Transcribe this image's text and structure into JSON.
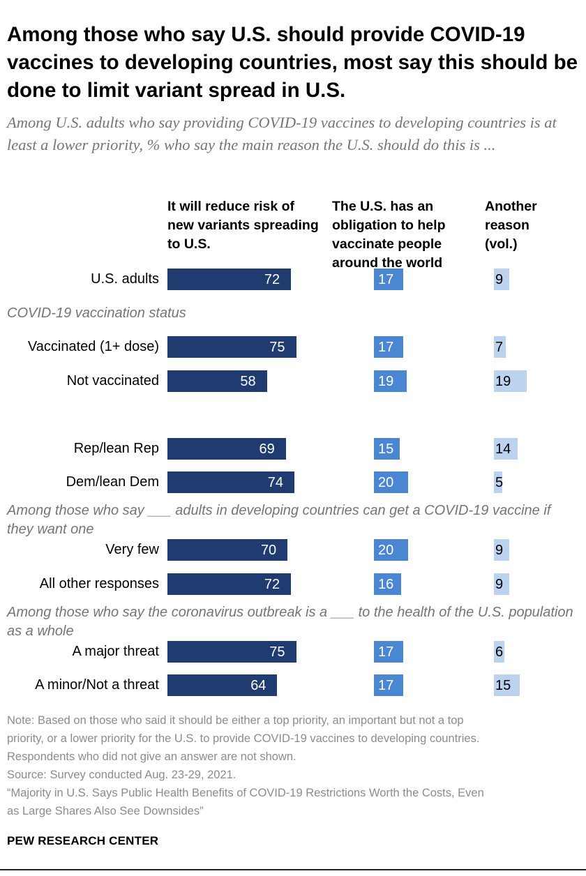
{
  "title": "Among those who say U.S. should provide COVID-19 vaccines to developing countries, most say this should be done to limit variant spread in U.S.",
  "subtitle": "Among U.S. adults who say providing COVID-19 vaccines to developing countries is at least a lower priority, % who say the main reason the U.S. should do this is ...",
  "colors": {
    "series0": "#1f3b6f",
    "series1": "#4a86d1",
    "series2": "#bcd3ef"
  },
  "chart_data": {
    "type": "bar",
    "orientation": "horizontal",
    "xlim": [
      0,
      100
    ],
    "series": [
      {
        "name": "It will reduce risk of new variants spreading to U.S.",
        "values": [
          72,
          75,
          58,
          69,
          74,
          70,
          72,
          75,
          64
        ]
      },
      {
        "name": "The U.S. has an obligation to help vaccinate people around the world",
        "values": [
          17,
          17,
          19,
          15,
          20,
          20,
          16,
          17,
          17
        ]
      },
      {
        "name": "Another reason (vol.)",
        "values": [
          9,
          7,
          19,
          14,
          5,
          9,
          9,
          6,
          15
        ]
      }
    ],
    "categories": [
      "U.S. adults",
      "Vaccinated (1+ dose)",
      "Not vaccinated",
      "Rep/lean Rep",
      "Dem/lean Dem",
      "Very few",
      "All other responses",
      "A major threat",
      "A minor/Not a threat"
    ],
    "section_labels": [
      "COVID-19 vaccination status",
      "Among those who say ___ adults in developing countries can get a COVID-19 vaccine if they want one",
      "Among those who say the coronavirus outbreak is a ___ to the health of the U.S. population as a whole"
    ]
  },
  "notes": [
    "Note: Based on those who said it should be either a top priority, an important but not a top",
    "priority, or a lower priority for the U.S. to provide COVID-19 vaccines to developing countries.",
    "Respondents who did not give an answer are not shown.",
    "Source: Survey conducted Aug. 23-29, 2021.",
    "“Majority in U.S. Says Public Health Benefits of COVID-19 Restrictions Worth the Costs, Even",
    "as Large Shares Also See Downsides”"
  ],
  "brand": "PEW RESEARCH CENTER"
}
